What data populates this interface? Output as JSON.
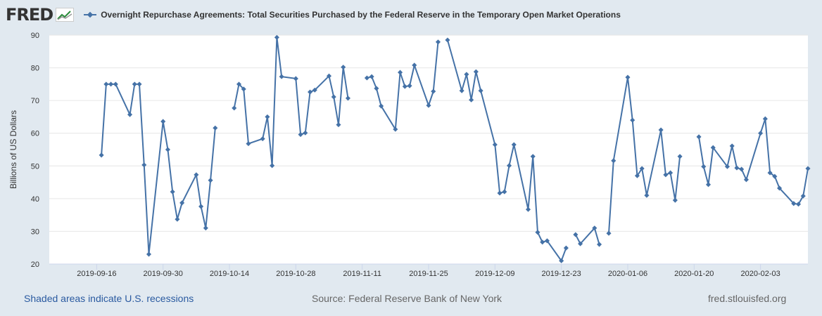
{
  "header": {
    "logo": "FRED",
    "legend_label": "Overnight Repurchase Agreements: Total Securities Purchased by the Federal Reserve in the Temporary Open Market Operations"
  },
  "footer": {
    "recessions": "Shaded areas indicate U.S. recessions",
    "source": "Source: Federal Reserve Bank of New York",
    "site": "fred.stlouisfed.org"
  },
  "colors": {
    "line": "#4572a7",
    "background": "#e1e9f0",
    "plot": "#ffffff",
    "grid": "#e6e6e6"
  },
  "chart_data": {
    "type": "line",
    "title": "",
    "xlabel": "",
    "ylabel": "Billions of US Dollars",
    "ylim": [
      20,
      90
    ],
    "xlim": [
      "2019-09-06",
      "2020-02-13"
    ],
    "yticks": [
      20,
      30,
      40,
      50,
      60,
      70,
      80,
      90
    ],
    "xticks": [
      "2019-09-16",
      "2019-09-30",
      "2019-10-14",
      "2019-10-28",
      "2019-11-11",
      "2019-11-25",
      "2019-12-09",
      "2019-12-23",
      "2020-01-06",
      "2020-01-20",
      "2020-02-03"
    ],
    "grid": true,
    "legend": "top-left",
    "series": [
      {
        "name": "Overnight Repurchase Agreements: Total Securities Purchased by the Federal Reserve in the Temporary Open Market Operations",
        "x": [
          "2019-09-17",
          "2019-09-18",
          "2019-09-19",
          "2019-09-20",
          "2019-09-23",
          "2019-09-24",
          "2019-09-25",
          "2019-09-26",
          "2019-09-27",
          "2019-09-30",
          "2019-10-01",
          "2019-10-02",
          "2019-10-03",
          "2019-10-04",
          "2019-10-07",
          "2019-10-08",
          "2019-10-09",
          "2019-10-10",
          "2019-10-11",
          "2019-10-14",
          "2019-10-15",
          "2019-10-16",
          "2019-10-17",
          "2019-10-18",
          "2019-10-21",
          "2019-10-22",
          "2019-10-23",
          "2019-10-24",
          "2019-10-25",
          "2019-10-28",
          "2019-10-29",
          "2019-10-30",
          "2019-10-31",
          "2019-11-01",
          "2019-11-04",
          "2019-11-05",
          "2019-11-06",
          "2019-11-07",
          "2019-11-08",
          "2019-11-11",
          "2019-11-12",
          "2019-11-13",
          "2019-11-14",
          "2019-11-15",
          "2019-11-18",
          "2019-11-19",
          "2019-11-20",
          "2019-11-21",
          "2019-11-22",
          "2019-11-25",
          "2019-11-26",
          "2019-11-27",
          "2019-11-28",
          "2019-11-29",
          "2019-12-02",
          "2019-12-03",
          "2019-12-04",
          "2019-12-05",
          "2019-12-06",
          "2019-12-09",
          "2019-12-10",
          "2019-12-11",
          "2019-12-12",
          "2019-12-13",
          "2019-12-16",
          "2019-12-17",
          "2019-12-18",
          "2019-12-19",
          "2019-12-20",
          "2019-12-23",
          "2019-12-24",
          "2019-12-25",
          "2019-12-26",
          "2019-12-27",
          "2019-12-30",
          "2019-12-31",
          "2020-01-01",
          "2020-01-02",
          "2020-01-03",
          "2020-01-06",
          "2020-01-07",
          "2020-01-08",
          "2020-01-09",
          "2020-01-10",
          "2020-01-13",
          "2020-01-14",
          "2020-01-15",
          "2020-01-16",
          "2020-01-17",
          "2020-01-20",
          "2020-01-21",
          "2020-01-22",
          "2020-01-23",
          "2020-01-24",
          "2020-01-27",
          "2020-01-28",
          "2020-01-29",
          "2020-01-30",
          "2020-01-31",
          "2020-02-03",
          "2020-02-04",
          "2020-02-05",
          "2020-02-06",
          "2020-02-07",
          "2020-02-10",
          "2020-02-11",
          "2020-02-12",
          "2020-02-13"
        ],
        "values": [
          53.3,
          75,
          75,
          75,
          65.7,
          75,
          75,
          50.3,
          23,
          63.6,
          55,
          42.1,
          33.7,
          38.7,
          47.3,
          37.6,
          31,
          45.6,
          61.6,
          null,
          67.7,
          75,
          73.5,
          56.8,
          58.3,
          65,
          50.1,
          89.3,
          77.3,
          76.7,
          59.6,
          60.1,
          72.6,
          73.2,
          77.5,
          71.1,
          62.6,
          80.2,
          70.7,
          null,
          76.9,
          77.3,
          73.7,
          68.3,
          61.2,
          78.6,
          74.3,
          74.5,
          80.8,
          68.5,
          72.8,
          87.9,
          null,
          88.5,
          73,
          78,
          70.2,
          78.8,
          73,
          56.5,
          41.7,
          42.1,
          50.1,
          56.5,
          36.7,
          52.9,
          29.7,
          26.7,
          27.1,
          21,
          24.9,
          null,
          29,
          26.2,
          31,
          26,
          null,
          29.4,
          51.6,
          77.1,
          64,
          47,
          49.2,
          41,
          61,
          47.3,
          47.9,
          39.5,
          52.9,
          null,
          58.9,
          49.8,
          44.3,
          55.6,
          49.8,
          56.1,
          49.4,
          49,
          45.8,
          60,
          64.4,
          47.9,
          46.8,
          43.2,
          38.5,
          38.3,
          40.8,
          49.2
        ]
      }
    ]
  }
}
